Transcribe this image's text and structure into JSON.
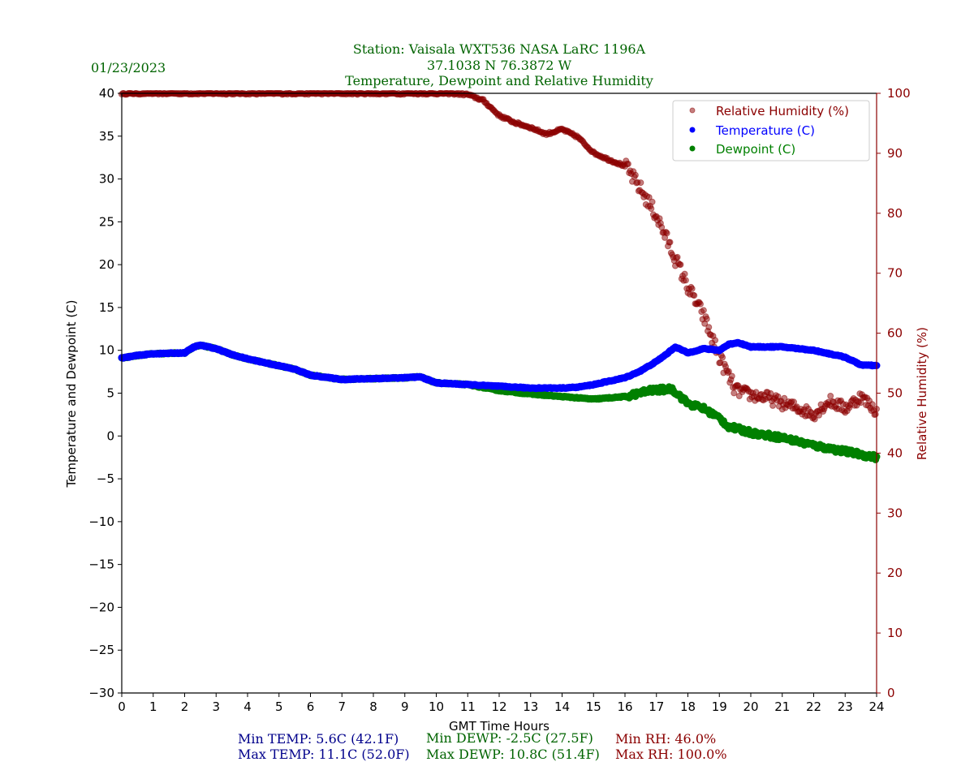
{
  "header": {
    "date": "01/23/2023",
    "title_lines": [
      "Station:  Vaisala WXT536  NASA LaRC 1196A",
      "37.1038 N 76.3872 W",
      "Temperature, Dewpoint and Relative Humidity"
    ]
  },
  "colors": {
    "title": "#006400",
    "temperature": "#0000ff",
    "dewpoint": "#008000",
    "rh": "#8b0000",
    "stats_temp": "#00008b",
    "stats_dewp": "#006400",
    "stats_rh": "#8b0000",
    "axis": "#000000"
  },
  "stats": {
    "min_temp": "Min TEMP: 5.6C (42.1F)",
    "max_temp": "Max TEMP: 11.1C (52.0F)",
    "min_dewp": "Min DEWP: -2.5C (27.5F)",
    "max_dewp": "Max DEWP: 10.8C (51.4F)",
    "min_rh": "Min RH: 46.0%",
    "max_rh": "Max RH: 100.0%"
  },
  "chart_data": {
    "type": "scatter",
    "title": "Temperature, Dewpoint and Relative Humidity",
    "xlabel": "GMT Time Hours",
    "ylabel": "Temperature and Dewpoint (C)",
    "y2label": "Relative Humidity (%)",
    "xlim": [
      0,
      24
    ],
    "ylim": [
      -30,
      40
    ],
    "y2lim": [
      0,
      100
    ],
    "grid": false,
    "legend_position": "top-right",
    "x_ticks": [
      0,
      1,
      2,
      3,
      4,
      5,
      6,
      7,
      8,
      9,
      10,
      11,
      12,
      13,
      14,
      15,
      16,
      17,
      18,
      19,
      20,
      21,
      22,
      23,
      24
    ],
    "y_ticks": [
      40,
      35,
      30,
      25,
      20,
      15,
      10,
      5,
      0,
      -5,
      -10,
      -15,
      -20,
      -25,
      -30
    ],
    "y_tick_labels": [
      "40",
      "35",
      "30",
      "25",
      "20",
      "15",
      "10",
      "5",
      "0",
      "−5",
      "−10",
      "−15",
      "−20",
      "−25",
      "−30"
    ],
    "y2_ticks": [
      100,
      90,
      80,
      70,
      60,
      50,
      40,
      30,
      20,
      10,
      0
    ],
    "legend": [
      "Relative Humidity (%)",
      "Temperature (C)",
      "Dewpoint (C)"
    ],
    "series": [
      {
        "name": "Relative Humidity (%)",
        "axis": "right",
        "x": [
          0,
          1,
          2,
          3,
          4,
          5,
          6,
          7,
          8,
          9,
          10,
          10.5,
          11,
          11.5,
          12,
          12.5,
          13,
          13.5,
          14,
          14.5,
          15,
          15.5,
          16,
          16.5,
          17,
          17.5,
          18,
          18.5,
          19,
          19.5,
          20,
          20.5,
          21,
          21.5,
          22,
          22.5,
          23,
          23.5,
          24
        ],
        "values": [
          100,
          100,
          100,
          100,
          100,
          100,
          100,
          100,
          100,
          100,
          100,
          100,
          99.8,
          98.8,
          96.3,
          95.1,
          94.3,
          93.2,
          94.0,
          92.7,
          90.1,
          88.9,
          87.9,
          84.0,
          79.6,
          73.6,
          67.7,
          62.8,
          56.0,
          50.6,
          49.7,
          49.3,
          48.3,
          47.5,
          46.5,
          48.7,
          47.5,
          49.4,
          47.0
        ]
      },
      {
        "name": "Temperature (C)",
        "axis": "left",
        "x": [
          0,
          0.5,
          1,
          2,
          2.3,
          2.5,
          3,
          3.5,
          4,
          5,
          5.5,
          6,
          7,
          8,
          9,
          9.5,
          10,
          11,
          12,
          13,
          14,
          14.5,
          15,
          16,
          16.5,
          17,
          17.3,
          17.6,
          18,
          18.5,
          19,
          19.3,
          19.6,
          20,
          21,
          22,
          23,
          23.5,
          24
        ],
        "values": [
          9.1,
          9.4,
          9.6,
          9.7,
          10.4,
          10.6,
          10.2,
          9.5,
          9.0,
          8.2,
          7.8,
          7.1,
          6.6,
          6.7,
          6.8,
          6.9,
          6.2,
          6.0,
          5.8,
          5.6,
          5.6,
          5.7,
          6.0,
          6.8,
          7.6,
          8.7,
          9.5,
          10.4,
          9.7,
          10.2,
          10.0,
          10.7,
          10.9,
          10.4,
          10.4,
          10.0,
          9.2,
          8.3,
          8.2
        ]
      },
      {
        "name": "Dewpoint (C)",
        "axis": "left",
        "x": [
          0,
          0.5,
          1,
          2,
          2.3,
          2.5,
          3,
          3.5,
          4,
          5,
          5.5,
          6,
          7,
          8,
          9,
          9.5,
          10,
          11,
          12,
          13,
          14,
          15,
          16,
          16.8,
          17.5,
          18,
          18.5,
          19,
          19.3,
          20,
          21,
          22,
          23,
          24
        ],
        "values": [
          9.1,
          9.4,
          9.6,
          9.7,
          10.4,
          10.6,
          10.2,
          9.5,
          9.0,
          8.2,
          7.8,
          7.1,
          6.6,
          6.7,
          6.8,
          6.9,
          6.2,
          6.0,
          5.3,
          4.9,
          4.6,
          4.3,
          4.6,
          5.3,
          5.5,
          3.8,
          3.2,
          2.1,
          1.1,
          0.4,
          -0.2,
          -1.1,
          -1.8,
          -2.5
        ]
      }
    ]
  }
}
